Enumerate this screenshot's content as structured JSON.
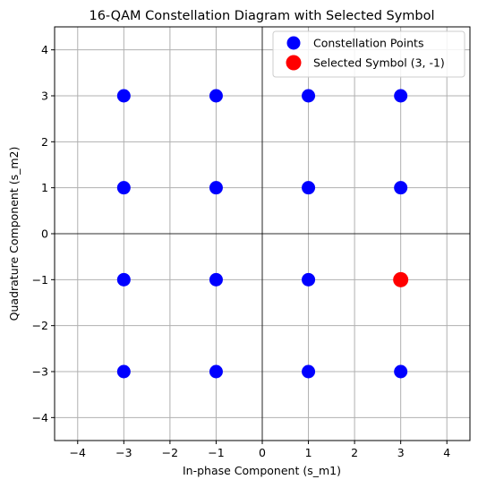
{
  "chart_data": {
    "type": "scatter",
    "title": "16-QAM Constellation Diagram with Selected Symbol",
    "xlabel": "In-phase Component (s_m1)",
    "ylabel": "Quadrature Component (s_m2)",
    "xlim": [
      -4.5,
      4.5
    ],
    "ylim": [
      -4.5,
      4.5
    ],
    "xticks": [
      -4,
      -3,
      -2,
      -1,
      0,
      1,
      2,
      3,
      4
    ],
    "yticks": [
      -4,
      -3,
      -2,
      -1,
      0,
      1,
      2,
      3,
      4
    ],
    "xtick_labels": [
      "−4",
      "−3",
      "−2",
      "−1",
      "0",
      "1",
      "2",
      "3",
      "4"
    ],
    "ytick_labels": [
      "−4",
      "−3",
      "−2",
      "−1",
      "0",
      "1",
      "2",
      "3",
      "4"
    ],
    "grid": true,
    "zero_lines": true,
    "legend_position": "top-right",
    "series": [
      {
        "name": "Constellation Points",
        "color": "#0000ff",
        "marker": "circle",
        "points": [
          [
            -3,
            -3
          ],
          [
            -3,
            -1
          ],
          [
            -3,
            1
          ],
          [
            -3,
            3
          ],
          [
            -1,
            -3
          ],
          [
            -1,
            -1
          ],
          [
            -1,
            1
          ],
          [
            -1,
            3
          ],
          [
            1,
            -3
          ],
          [
            1,
            -1
          ],
          [
            1,
            1
          ],
          [
            1,
            3
          ],
          [
            3,
            -3
          ],
          [
            3,
            1
          ],
          [
            3,
            3
          ]
        ]
      },
      {
        "name": "Selected Symbol (3, -1)",
        "color": "#ff0000",
        "marker": "circle",
        "points": [
          [
            3,
            -1
          ]
        ]
      }
    ]
  }
}
